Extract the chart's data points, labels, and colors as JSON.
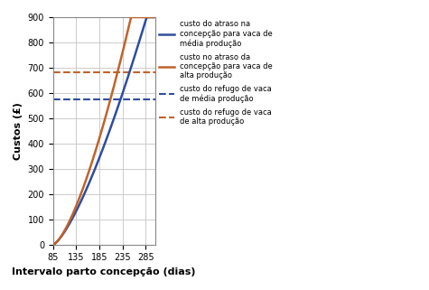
{
  "title": "",
  "xlabel": "Intervalo parto concepção (dias)",
  "ylabel": "Custos (£)",
  "xlim": [
    85,
    305
  ],
  "ylim": [
    0,
    900
  ],
  "xticks": [
    85,
    135,
    185,
    235,
    285
  ],
  "yticks": [
    0,
    100,
    200,
    300,
    400,
    500,
    600,
    700,
    800,
    900
  ],
  "x_start": 85,
  "x_end": 302,
  "dashed_blue_y": 575,
  "dashed_orange_y": 683,
  "blue_color": "#2E4D9E",
  "orange_color": "#C0632A",
  "A_blue": 5.2e-05,
  "n_blue": 2.85,
  "A_orange": 2.8e-05,
  "n_orange": 3.05,
  "legend": [
    "custo do atraso na\nconcepção para vaca de\nmédia produção",
    "custo no atraso da\nconcepção para vaca de\nalta produção",
    "custo do refugo de vaca\nde média produção",
    "custo do refugo de vaca\nde alta produção"
  ],
  "figsize": [
    4.75,
    3.21
  ],
  "dpi": 100,
  "grid_color": "#CCCCCC",
  "background_color": "#FFFFFF"
}
